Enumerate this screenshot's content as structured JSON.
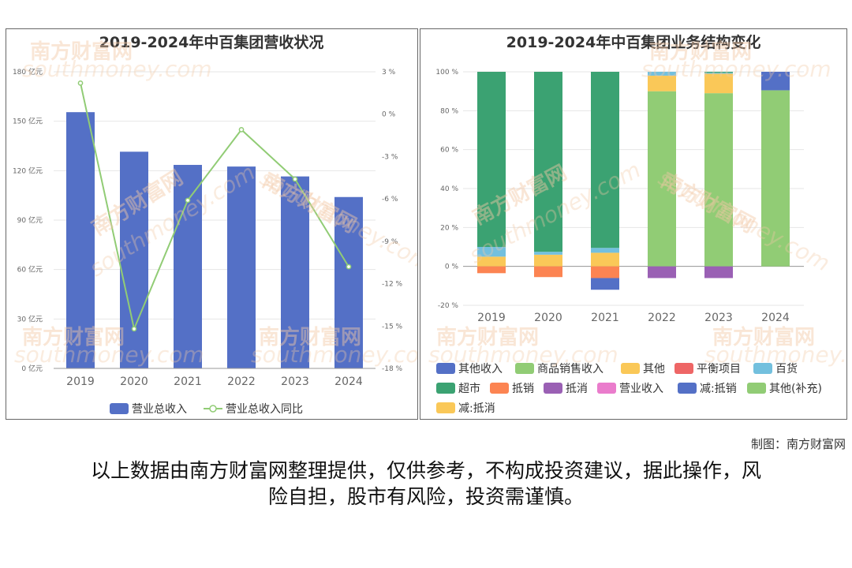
{
  "chart_data": [
    {
      "type": "bar",
      "title": "2019-2024年中百集团营收状况",
      "categories": [
        "2019",
        "2020",
        "2021",
        "2022",
        "2023",
        "2024"
      ],
      "series": [
        {
          "name": "营业总收入",
          "type": "bar",
          "axis": "left",
          "color": "#5470c6",
          "values": [
            155.5,
            131.5,
            123.5,
            122.5,
            116.5,
            104
          ]
        },
        {
          "name": "营业总收入同比",
          "type": "line",
          "axis": "right",
          "color": "#91cc75",
          "values": [
            2.2,
            -15.2,
            -6.1,
            -1.1,
            -4.6,
            -10.8
          ]
        }
      ],
      "y_left": {
        "ticks": [
          "0 亿元",
          "30 亿元",
          "60 亿元",
          "90 亿元",
          "120 亿元",
          "150 亿元",
          "180 亿元"
        ],
        "ylim": [
          0,
          180
        ]
      },
      "y_right": {
        "ticks": [
          "-18 %",
          "-15 %",
          "-12 %",
          "-9 %",
          "-6 %",
          "-3 %",
          "0 %",
          "3 %"
        ],
        "ylim": [
          -18,
          3
        ]
      },
      "legend": [
        "营业总收入",
        "营业总收入同比"
      ]
    },
    {
      "type": "bar",
      "stacked": true,
      "title": "2019-2024年中百集团业务结构变化",
      "categories": [
        "2019",
        "2020",
        "2021",
        "2022",
        "2023",
        "2024"
      ],
      "y_ticks": [
        "-20 %",
        "0 %",
        "20 %",
        "40 %",
        "60 %",
        "80 %",
        "100 %"
      ],
      "ylim": [
        -20,
        100
      ],
      "series": [
        {
          "name": "其他收入",
          "color": "#5470c6",
          "values": [
            0,
            0,
            0,
            0,
            0,
            0
          ]
        },
        {
          "name": "商品销售收入",
          "color": "#91cc75",
          "values": [
            0,
            0,
            0,
            90,
            89,
            0
          ]
        },
        {
          "name": "其他",
          "color": "#fac858",
          "values": [
            5,
            6,
            7,
            8,
            10,
            0
          ]
        },
        {
          "name": "平衡项目",
          "color": "#ee6666",
          "values": [
            0,
            0,
            0,
            0,
            0,
            0
          ]
        },
        {
          "name": "百货",
          "color": "#73c0de",
          "values": [
            5,
            1.5,
            2.5,
            2,
            0.5,
            0
          ]
        },
        {
          "name": "超市",
          "color": "#3ba272",
          "values": [
            90,
            92.5,
            90.5,
            0,
            0.5,
            0
          ]
        },
        {
          "name": "抵销",
          "color": "#fc8452",
          "values": [
            -3.5,
            -5.5,
            -6,
            0,
            0,
            0
          ]
        },
        {
          "name": "抵消",
          "color": "#9a60b4",
          "values": [
            0,
            0,
            0,
            -6,
            -6,
            0
          ]
        },
        {
          "name": "营业收入",
          "color": "#ea7ccc",
          "values": [
            0,
            0,
            0,
            0,
            0,
            0
          ]
        },
        {
          "name": "减:抵销",
          "color": "#5470c6",
          "values": [
            0,
            0,
            -6,
            0,
            0,
            0
          ]
        },
        {
          "name": "其他(补充)",
          "color": "#91cc75",
          "values": [
            0,
            0,
            0,
            0,
            0,
            90.5
          ]
        },
        {
          "name": "减:抵消",
          "color": "#fac858",
          "values": [
            0,
            0,
            0,
            0,
            0,
            0
          ]
        },
        {
          "name": "其他收入",
          "color": "#5470c6",
          "values": [
            0,
            0,
            0,
            0,
            0,
            9.5
          ]
        }
      ],
      "legend": [
        "其他收入",
        "商品销售收入",
        "其他",
        "平衡项目",
        "百货",
        "超市",
        "抵销",
        "抵消",
        "营业收入",
        "减:抵销",
        "其他(补充)",
        "减:抵消"
      ]
    }
  ],
  "left_legend": {
    "bar_label": "营业总收入",
    "line_label": "营业总收入同比"
  },
  "right_legend_colors": [
    "#5470c6",
    "#91cc75",
    "#fac858",
    "#ee6666",
    "#73c0de",
    "#3ba272",
    "#fc8452",
    "#9a60b4",
    "#ea7ccc",
    "#5470c6",
    "#91cc75",
    "#fac858"
  ],
  "watermark": {
    "cn": "南方财富网",
    "en": "southmoney.com"
  },
  "credit": "制图：南方财富网",
  "disclaimer": [
    "以上数据由南方财富网整理提供，仅供参考，不构成投资建议，据此操作，风",
    "险自担，股市有风险，投资需谨慎。"
  ]
}
